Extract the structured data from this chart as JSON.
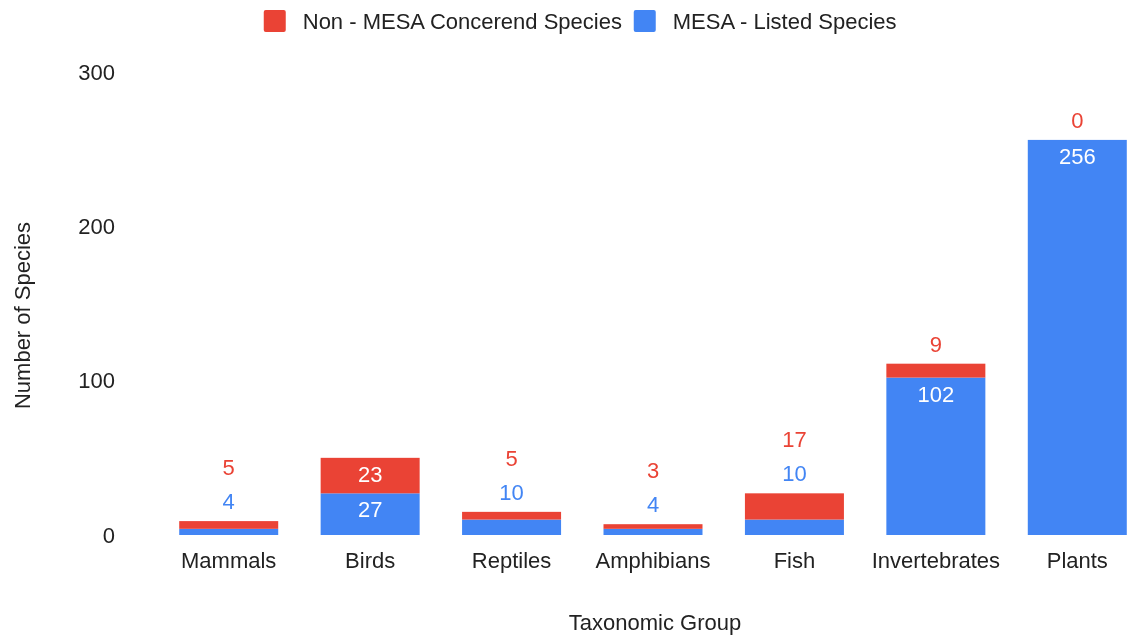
{
  "chart_data": {
    "type": "bar",
    "stacked": true,
    "xlabel": "Taxonomic Group",
    "ylabel": "Number of Species",
    "categories": [
      "Mammals",
      "Birds",
      "Reptiles",
      "Amphibians",
      "Fish",
      "Invertebrates",
      "Plants"
    ],
    "series": [
      {
        "name": "MESA - Listed Species",
        "color": "#4285f4",
        "values": [
          4,
          27,
          10,
          4,
          10,
          102,
          256
        ]
      },
      {
        "name": "Non - MESA Concerend Species",
        "color": "#ea4335",
        "values": [
          5,
          23,
          5,
          3,
          17,
          9,
          0
        ]
      }
    ],
    "ylim": [
      0,
      300
    ],
    "yticks": [
      0,
      100,
      200,
      300
    ],
    "data_labels": true,
    "legend": "top"
  }
}
